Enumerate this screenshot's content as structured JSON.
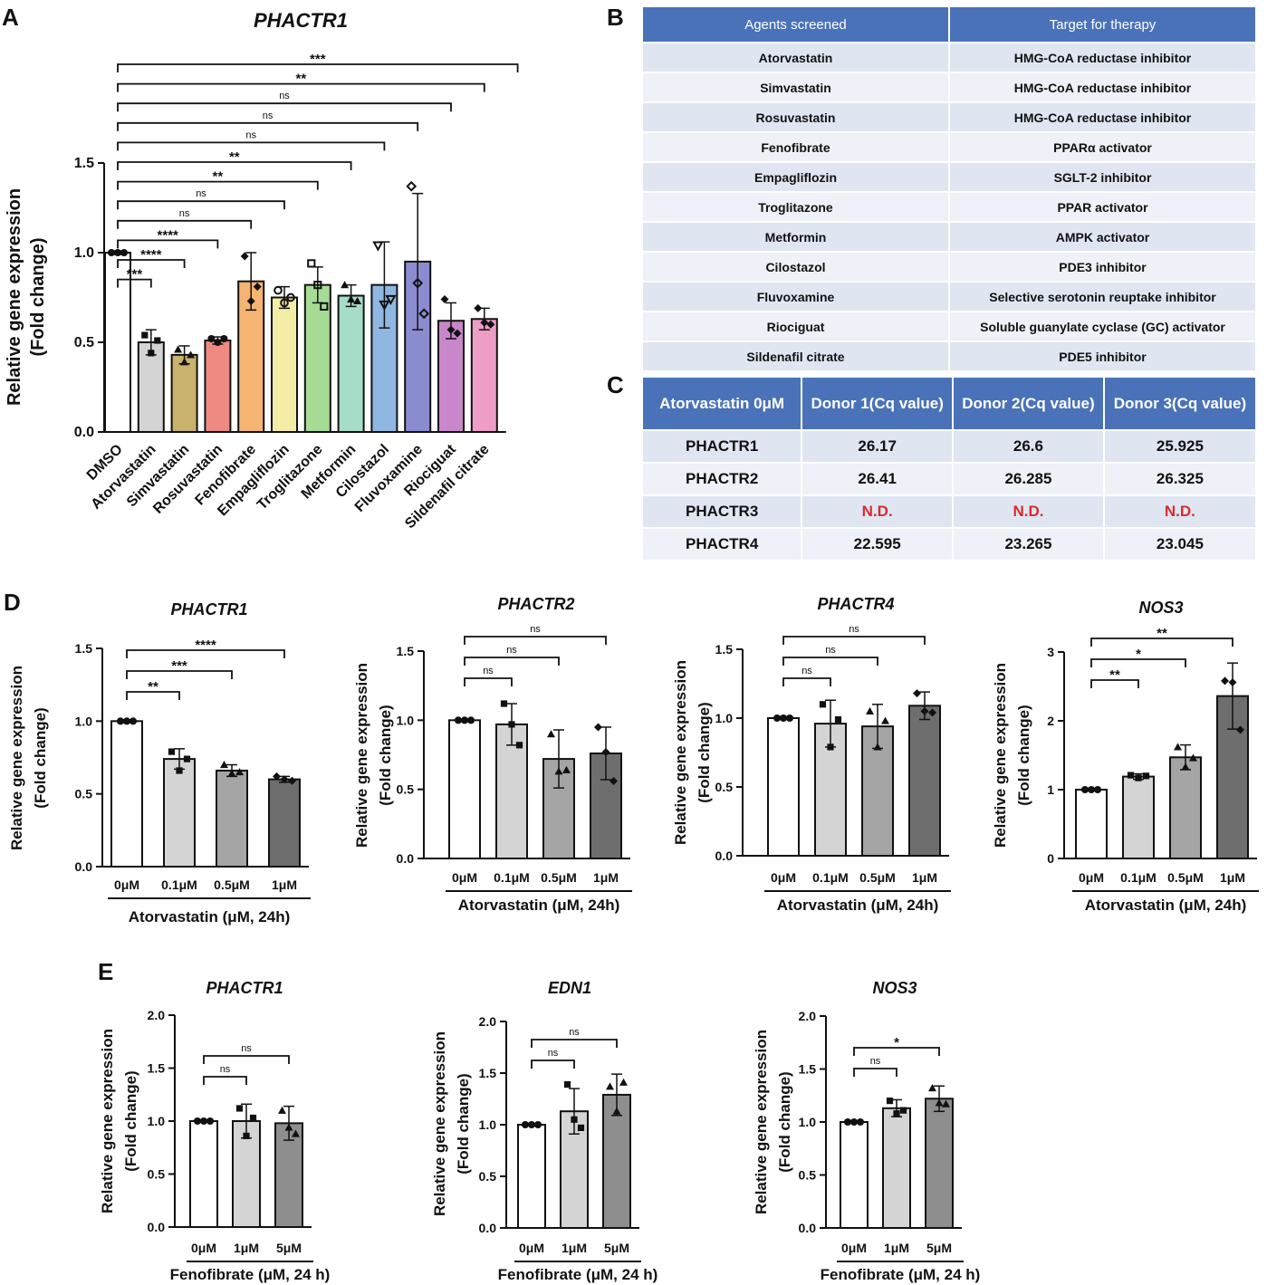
{
  "panel_letters": {
    "a": "A",
    "b": "B",
    "c": "C",
    "d": "D",
    "e": "E"
  },
  "tableB": {
    "headers": [
      "Agents screened",
      "Target for therapy"
    ],
    "rows": [
      [
        "Atorvastatin",
        "HMG-CoA reductase inhibitor"
      ],
      [
        "Simvastatin",
        "HMG-CoA reductase inhibitor"
      ],
      [
        "Rosuvastatin",
        "HMG-CoA reductase inhibitor"
      ],
      [
        "Fenofibrate",
        "PPARα activator"
      ],
      [
        "Empagliflozin",
        "SGLT-2 inhibitor"
      ],
      [
        "Troglitazone",
        "PPAR activator"
      ],
      [
        "Metformin",
        "AMPK activator"
      ],
      [
        "Cilostazol",
        "PDE3 inhibitor"
      ],
      [
        "Fluvoxamine",
        "Selective serotonin reuptake inhibitor"
      ],
      [
        "Riociguat",
        "Soluble guanylate cyclase (GC) activator"
      ],
      [
        "Sildenafil citrate",
        "PDE5 inhibitor"
      ]
    ]
  },
  "tableC": {
    "headers": [
      "Atorvastatin 0μM",
      "Donor 1(Cq value)",
      "Donor 2(Cq value)",
      "Donor 3(Cq value)"
    ],
    "rows": [
      [
        "PHACTR1",
        "26.17",
        "26.6",
        "25.925"
      ],
      [
        "PHACTR2",
        "26.41",
        "26.285",
        "26.325"
      ],
      [
        "PHACTR3",
        "N.D.",
        "N.D.",
        "N.D."
      ],
      [
        "PHACTR4",
        "22.595",
        "23.265",
        "23.045"
      ]
    ]
  },
  "chart_data": [
    {
      "id": "A",
      "type": "bar",
      "title": "PHACTR1",
      "ylabel": [
        "Relative gene expression",
        "(Fold change)"
      ],
      "xlabel": "",
      "ylim": [
        0,
        1.5
      ],
      "yticks": [
        "0.0",
        "0.5",
        "1.0",
        "1.5"
      ],
      "ytick_values": [
        0,
        0.5,
        1,
        1.5
      ],
      "categories": [
        "DMSO",
        "Atorvastatin",
        "Simvastatin",
        "Rosuvastatin",
        "Fenofibrate",
        "Empagliflozin",
        "Troglitazone",
        "Metformin",
        "Cilostazol",
        "Fluvoxamine",
        "Riociguat",
        "Sildenafil citrate"
      ],
      "values": [
        1.0,
        0.5,
        0.43,
        0.51,
        0.84,
        0.75,
        0.82,
        0.76,
        0.82,
        0.95,
        0.62,
        0.63
      ],
      "errors": [
        0.01,
        0.07,
        0.05,
        0.02,
        0.16,
        0.06,
        0.1,
        0.06,
        0.24,
        0.38,
        0.1,
        0.06
      ],
      "points": [
        [
          1,
          1,
          1
        ],
        [
          0.54,
          0.44,
          0.51
        ],
        [
          0.46,
          0.39,
          0.43
        ],
        [
          0.52,
          0.5,
          0.52
        ],
        [
          0.98,
          0.73,
          0.81
        ],
        [
          0.79,
          0.72,
          0.75
        ],
        [
          0.94,
          0.82,
          0.7
        ],
        [
          0.82,
          0.74,
          0.73
        ],
        [
          1.04,
          0.71,
          0.74
        ],
        [
          1.37,
          0.83,
          0.66
        ],
        [
          0.74,
          0.57,
          0.55
        ],
        [
          0.69,
          0.61,
          0.6
        ]
      ],
      "colors": [
        "#ffffff",
        "#d4d4d4",
        "#c8b26c",
        "#ef8a82",
        "#f6b473",
        "#f3eda6",
        "#a6dc96",
        "#a6ddc8",
        "#8fb7e2",
        "#8b8cd0",
        "#c987cb",
        "#ee9dc7"
      ],
      "comparisons": [
        {
          "to": 1,
          "label": "***"
        },
        {
          "to": 2,
          "label": "****"
        },
        {
          "to": 3,
          "label": "****"
        },
        {
          "to": 4,
          "label": "ns"
        },
        {
          "to": 5,
          "label": "ns"
        },
        {
          "to": 6,
          "label": "**"
        },
        {
          "to": 7,
          "label": "**"
        },
        {
          "to": 8,
          "label": "ns"
        },
        {
          "to": 9,
          "label": "ns"
        },
        {
          "to": 10,
          "label": "ns"
        },
        {
          "to": 11,
          "label": "**"
        },
        {
          "to": 12,
          "label": "***"
        }
      ]
    },
    {
      "id": "D1",
      "type": "bar",
      "title": "PHACTR1",
      "ylabel": [
        "Relative gene expression",
        "(Fold change)"
      ],
      "xlabel": "Atorvastatin (μM, 24h)",
      "ylim": [
        0,
        1.5
      ],
      "yticks": [
        "0.0",
        "0.5",
        "1.0",
        "1.5"
      ],
      "ytick_values": [
        0,
        0.5,
        1,
        1.5
      ],
      "categories": [
        "0μM",
        "0.1μM",
        "0.5μM",
        "1μM"
      ],
      "values": [
        1.0,
        0.74,
        0.66,
        0.6
      ],
      "errors": [
        0.01,
        0.07,
        0.04,
        0.02
      ],
      "points": [
        [
          1,
          1,
          1
        ],
        [
          0.79,
          0.66,
          0.74
        ],
        [
          0.7,
          0.64,
          0.65
        ],
        [
          0.62,
          0.6,
          0.59
        ]
      ],
      "colors": [
        "#ffffff",
        "#d4d4d4",
        "#a5a5a5",
        "#6e6e6e"
      ],
      "comparisons": [
        {
          "to": 1,
          "label": "**"
        },
        {
          "to": 2,
          "label": "***"
        },
        {
          "to": 3,
          "label": "****"
        }
      ]
    },
    {
      "id": "D2",
      "type": "bar",
      "title": "PHACTR2",
      "ylabel": [
        "Relative gene expression",
        "(Fold change)"
      ],
      "xlabel": "Atorvastatin (μM, 24h)",
      "ylim": [
        0,
        1.5
      ],
      "yticks": [
        "0.0",
        "0.5",
        "1.0",
        "1.5"
      ],
      "ytick_values": [
        0,
        0.5,
        1,
        1.5
      ],
      "categories": [
        "0μM",
        "0.1μM",
        "0.5μM",
        "1μM"
      ],
      "values": [
        1.0,
        0.97,
        0.72,
        0.76
      ],
      "errors": [
        0.01,
        0.15,
        0.21,
        0.19
      ],
      "points": [
        [
          1,
          1,
          1
        ],
        [
          1.12,
          0.97,
          0.82
        ],
        [
          0.9,
          0.63,
          0.64
        ],
        [
          0.95,
          0.77,
          0.56
        ]
      ],
      "colors": [
        "#ffffff",
        "#d4d4d4",
        "#a5a5a5",
        "#6e6e6e"
      ],
      "comparisons": [
        {
          "to": 1,
          "label": "ns"
        },
        {
          "to": 2,
          "label": "ns"
        },
        {
          "to": 3,
          "label": "ns"
        }
      ]
    },
    {
      "id": "D3",
      "type": "bar",
      "title": "PHACTR4",
      "ylabel": [
        "Relative gene expression",
        "(Fold change)"
      ],
      "xlabel": "Atorvastatin (μM, 24h)",
      "ylim": [
        0,
        1.5
      ],
      "yticks": [
        "0.0",
        "0.5",
        "1.0",
        "1.5"
      ],
      "ytick_values": [
        0,
        0.5,
        1,
        1.5
      ],
      "categories": [
        "0μM",
        "0.1μM",
        "0.5μM",
        "1μM"
      ],
      "values": [
        1.0,
        0.96,
        0.94,
        1.09
      ],
      "errors": [
        0.01,
        0.17,
        0.16,
        0.1
      ],
      "points": [
        [
          1,
          1,
          1
        ],
        [
          1.1,
          0.79,
          0.99
        ],
        [
          1.05,
          0.79,
          0.98
        ],
        [
          1.18,
          1.05,
          1.04
        ]
      ],
      "colors": [
        "#ffffff",
        "#d4d4d4",
        "#a5a5a5",
        "#6e6e6e"
      ],
      "comparisons": [
        {
          "to": 1,
          "label": "ns"
        },
        {
          "to": 2,
          "label": "ns"
        },
        {
          "to": 3,
          "label": "ns"
        }
      ]
    },
    {
      "id": "D4",
      "type": "bar",
      "title": "NOS3",
      "ylabel": [
        "Relative gene expression",
        "(Fold change)"
      ],
      "xlabel": "Atorvastatin (μM, 24h)",
      "ylim": [
        0,
        3
      ],
      "yticks": [
        "0",
        "1",
        "2",
        "3"
      ],
      "ytick_values": [
        0,
        1,
        2,
        3
      ],
      "categories": [
        "0μM",
        "0.1μM",
        "0.5μM",
        "1μM"
      ],
      "values": [
        1.0,
        1.19,
        1.47,
        2.36
      ],
      "errors": [
        0.01,
        0.04,
        0.18,
        0.48
      ],
      "points": [
        [
          1,
          1,
          1
        ],
        [
          1.21,
          1.17,
          1.2
        ],
        [
          1.62,
          1.33,
          1.46
        ],
        [
          2.58,
          2.56,
          1.87
        ]
      ],
      "colors": [
        "#ffffff",
        "#d4d4d4",
        "#a5a5a5",
        "#6e6e6e"
      ],
      "comparisons": [
        {
          "to": 1,
          "label": "**"
        },
        {
          "to": 2,
          "label": "*"
        },
        {
          "to": 3,
          "label": "**"
        }
      ]
    },
    {
      "id": "E1",
      "type": "bar",
      "title": "PHACTR1",
      "ylabel": [
        "Relative gene expression",
        "(Fold change)"
      ],
      "xlabel": "Fenofibrate (μM, 24 h)",
      "ylim": [
        0,
        2.0
      ],
      "yticks": [
        "0.0",
        "0.5",
        "1.0",
        "1.5",
        "2.0"
      ],
      "ytick_values": [
        0,
        0.5,
        1,
        1.5,
        2
      ],
      "categories": [
        "0μM",
        "1μM",
        "5μM"
      ],
      "values": [
        1.0,
        1.0,
        0.98
      ],
      "errors": [
        0.01,
        0.16,
        0.16
      ],
      "points": [
        [
          1,
          1,
          1
        ],
        [
          1.12,
          0.86,
          1.03
        ],
        [
          1.1,
          0.94,
          0.88
        ]
      ],
      "colors": [
        "#ffffff",
        "#d4d4d4",
        "#8e8e8e"
      ],
      "comparisons": [
        {
          "to": 1,
          "label": "ns"
        },
        {
          "to": 2,
          "label": "ns"
        }
      ]
    },
    {
      "id": "E2",
      "type": "bar",
      "title": "EDN1",
      "ylabel": [
        "Relative gene expression",
        "(Fold change)"
      ],
      "xlabel": "Fenofibrate (μM, 24 h)",
      "ylim": [
        0,
        2.0
      ],
      "yticks": [
        "0.0",
        "0.5",
        "1.0",
        "1.5",
        "2.0"
      ],
      "ytick_values": [
        0,
        0.5,
        1,
        1.5,
        2
      ],
      "categories": [
        "0μM",
        "1μM",
        "5μM"
      ],
      "values": [
        1.0,
        1.13,
        1.29
      ],
      "errors": [
        0.01,
        0.22,
        0.2
      ],
      "points": [
        [
          1,
          1,
          1
        ],
        [
          1.39,
          1.05,
          0.97
        ],
        [
          1.37,
          1.13,
          1.41
        ]
      ],
      "colors": [
        "#ffffff",
        "#d4d4d4",
        "#8e8e8e"
      ],
      "comparisons": [
        {
          "to": 1,
          "label": "ns"
        },
        {
          "to": 2,
          "label": "ns"
        }
      ]
    },
    {
      "id": "E3",
      "type": "bar",
      "title": "NOS3",
      "ylabel": [
        "Relative gene expression",
        "(Fold change)"
      ],
      "xlabel": "Fenofibrate (μM, 24 h)",
      "ylim": [
        0,
        2.0
      ],
      "yticks": [
        "0.0",
        "0.5",
        "1.0",
        "1.5",
        "2.0"
      ],
      "ytick_values": [
        0,
        0.5,
        1,
        1.5,
        2
      ],
      "categories": [
        "0μM",
        "1μM",
        "5μM"
      ],
      "values": [
        1.0,
        1.13,
        1.22
      ],
      "errors": [
        0.01,
        0.08,
        0.12
      ],
      "points": [
        [
          1,
          1,
          1
        ],
        [
          1.2,
          1.08,
          1.11
        ],
        [
          1.32,
          1.18,
          1.17
        ]
      ],
      "colors": [
        "#ffffff",
        "#d4d4d4",
        "#8e8e8e"
      ],
      "comparisons": [
        {
          "to": 1,
          "label": "ns"
        },
        {
          "to": 2,
          "label": "*"
        }
      ]
    }
  ]
}
